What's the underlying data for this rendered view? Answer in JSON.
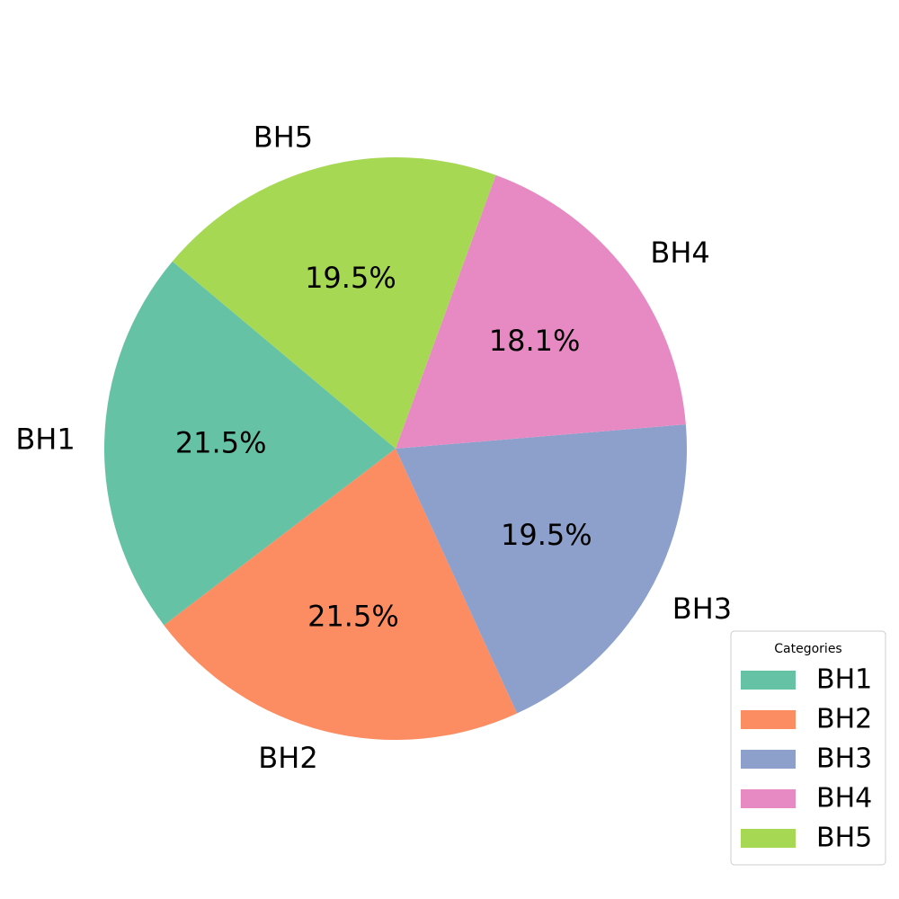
{
  "chart_data": {
    "type": "pie",
    "title": "",
    "categories": [
      "BH1",
      "BH2",
      "BH3",
      "BH4",
      "BH5"
    ],
    "values": [
      21.5,
      21.5,
      19.5,
      18.1,
      19.5
    ],
    "percent_labels": [
      "21.5%",
      "21.5%",
      "19.5%",
      "18.1%",
      "19.5%"
    ],
    "colors": [
      "#66c2a5",
      "#fc8d62",
      "#8da0cb",
      "#e78ac3",
      "#a6d854"
    ],
    "start_angle_deg": 140,
    "direction": "counterclockwise",
    "legend": {
      "title": "Categories",
      "placement": "lower-right",
      "entries": [
        "BH1",
        "BH2",
        "BH3",
        "BH4",
        "BH5"
      ]
    }
  }
}
